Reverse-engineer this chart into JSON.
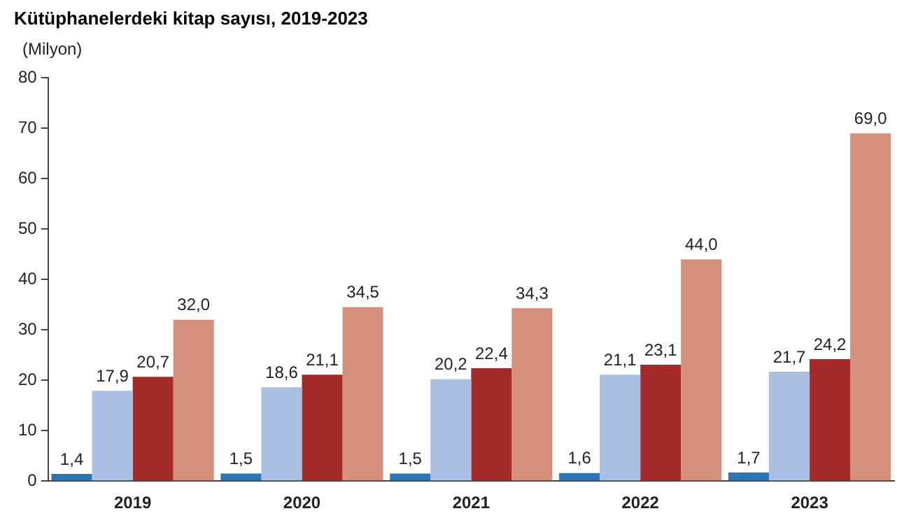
{
  "chart_data": {
    "type": "bar",
    "title": "Kütüphanelerdeki kitap sayısı, 2019-2023",
    "ylabel": "(Milyon)",
    "categories": [
      "2019",
      "2020",
      "2021",
      "2022",
      "2023"
    ],
    "series": [
      {
        "color": "#2e75b6",
        "values": [
          1.4,
          1.5,
          1.5,
          1.6,
          1.7
        ],
        "value_labels": [
          "1,4",
          "1,5",
          "1,5",
          "1,6",
          "1,7"
        ]
      },
      {
        "color": "#a9c0e3",
        "values": [
          17.9,
          18.6,
          20.2,
          21.1,
          21.7
        ],
        "value_labels": [
          "17,9",
          "18,6",
          "20,2",
          "21,1",
          "21,7"
        ]
      },
      {
        "color": "#a52a2a",
        "values": [
          20.7,
          21.1,
          22.4,
          23.1,
          24.2
        ],
        "value_labels": [
          "20,7",
          "21,1",
          "22,4",
          "23,1",
          "24,2"
        ]
      },
      {
        "color": "#d4907a",
        "values": [
          32.0,
          34.5,
          34.3,
          44.0,
          69.0
        ],
        "value_labels": [
          "32,0",
          "34,5",
          "34,3",
          "44,0",
          "69,0"
        ]
      }
    ],
    "ylim": [
      0,
      80
    ],
    "yticks": [
      0,
      10,
      20,
      30,
      40,
      50,
      60,
      70,
      80
    ],
    "grid": false,
    "legend": false
  }
}
